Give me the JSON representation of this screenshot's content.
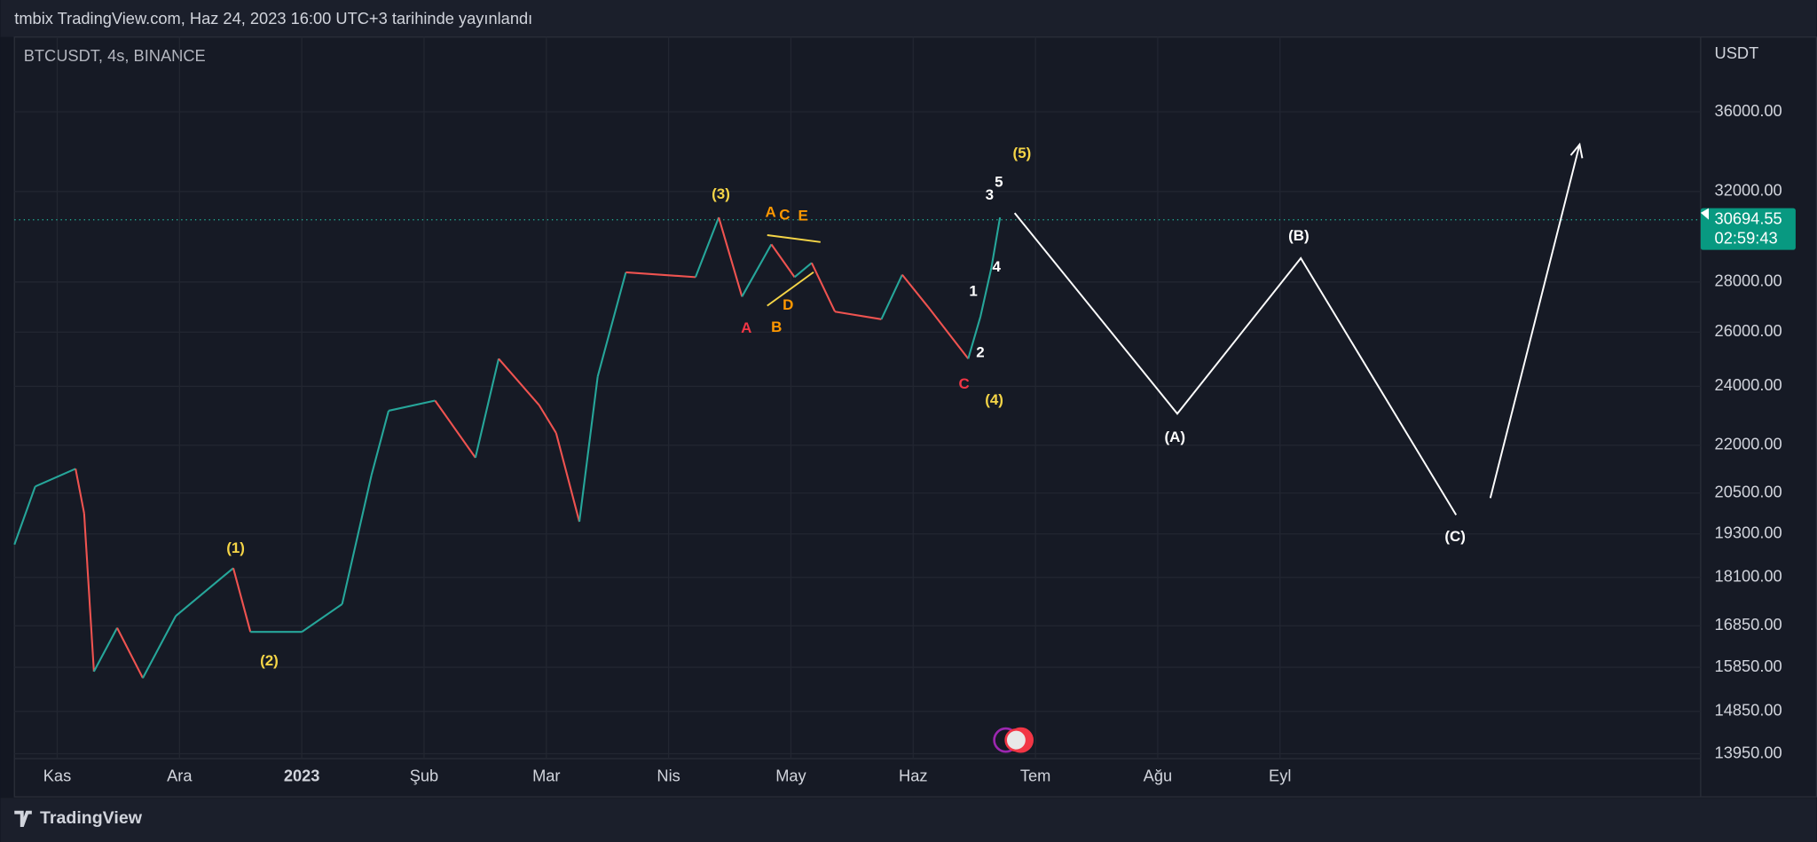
{
  "header": {
    "publisher": "tmbix TradingView.com, Haz 24, 2023 16:00 UTC+3 tarihinde yayınlandı"
  },
  "symbol": "BTCUSDT, 4s, BINANCE",
  "footer": {
    "brand": "TradingView"
  },
  "chart_data": {
    "type": "line",
    "y_axis_label": "USDT",
    "log_scale": true,
    "grid": true,
    "xlim": [
      -0.35,
      13.44
    ],
    "xticks": [
      {
        "value": 0,
        "label": "Kas"
      },
      {
        "value": 1,
        "label": "Ara"
      },
      {
        "value": 2,
        "label": "2023"
      },
      {
        "value": 3,
        "label": "Şub"
      },
      {
        "value": 4,
        "label": "Mar"
      },
      {
        "value": 5,
        "label": "Nis"
      },
      {
        "value": 6,
        "label": "May"
      },
      {
        "value": 7,
        "label": "Haz"
      },
      {
        "value": 8,
        "label": "Tem"
      },
      {
        "value": 9,
        "label": "Ağu"
      },
      {
        "value": 10,
        "label": "Eyl"
      }
    ],
    "ylim": [
      13850,
      40200
    ],
    "yticks": [
      {
        "value": 36000,
        "label": "36000.00"
      },
      {
        "value": 32000,
        "label": "32000.00"
      },
      {
        "value": 28000,
        "label": "28000.00"
      },
      {
        "value": 26000,
        "label": "26000.00"
      },
      {
        "value": 24000,
        "label": "24000.00"
      },
      {
        "value": 22000,
        "label": "22000.00"
      },
      {
        "value": 20500,
        "label": "20500.00"
      },
      {
        "value": 19300,
        "label": "19300.00"
      },
      {
        "value": 18100,
        "label": "18100.00"
      },
      {
        "value": 16850,
        "label": "16850.00"
      },
      {
        "value": 15850,
        "label": "15850.00"
      },
      {
        "value": 14850,
        "label": "14850.00"
      },
      {
        "value": 13950,
        "label": "13950.00"
      }
    ],
    "last_price": 30694.55,
    "countdown": "02:59:43",
    "series": [
      {
        "color": "#26a69a",
        "down_color": "#ef5350",
        "x": [
          -0.35,
          -0.18,
          0.15,
          0.22,
          0.3,
          0.49,
          0.7,
          0.97,
          1.44,
          1.58,
          2.0,
          2.33,
          2.57,
          2.71,
          3.09,
          3.42,
          3.61,
          3.94,
          4.08,
          4.27,
          4.42,
          4.65,
          5.22,
          5.41,
          5.6,
          5.84,
          6.03,
          6.17,
          6.36,
          6.74,
          6.91,
          7.12,
          7.45,
          7.55,
          7.64,
          7.71
        ],
        "values": [
          19000,
          20700,
          21250,
          19900,
          15750,
          16800,
          15600,
          17100,
          18350,
          16700,
          16700,
          17400,
          21050,
          23150,
          23500,
          21600,
          25000,
          23350,
          22400,
          19650,
          24350,
          28400,
          28200,
          30800,
          27400,
          29600,
          28200,
          28800,
          26800,
          26500,
          28300,
          27000,
          25000,
          26600,
          28600,
          30800
        ]
      },
      {
        "color": "#ffffff",
        "arrow": true,
        "x": [
          7.83,
          9.16,
          10.17,
          11.44,
          null,
          11.72,
          12.45
        ],
        "values": [
          31000,
          23050,
          29000,
          19850,
          null,
          20350,
          34300
        ]
      }
    ],
    "annotations": [
      {
        "text": "(1)",
        "color": "#f5d547"
      },
      {
        "text": "(2)",
        "color": "#f5d547"
      },
      {
        "text": "(3)",
        "color": "#f5d547"
      },
      {
        "text": "(4)",
        "color": "#f5d547"
      },
      {
        "text": "(5)",
        "color": "#f5d547"
      },
      {
        "text": "A",
        "color": "#ff9800"
      },
      {
        "text": "C",
        "color": "#ff9800"
      },
      {
        "text": "E",
        "color": "#ff9800"
      },
      {
        "text": "B",
        "color": "#ff9800"
      },
      {
        "text": "D",
        "color": "#ff9800"
      },
      {
        "text": "A",
        "color": "#f23645"
      },
      {
        "text": "C",
        "color": "#f23645"
      },
      {
        "text": "1",
        "color": "#ffffff"
      },
      {
        "text": "2",
        "color": "#ffffff"
      },
      {
        "text": "3",
        "color": "#ffffff"
      },
      {
        "text": "4",
        "color": "#ffffff"
      },
      {
        "text": "5",
        "color": "#ffffff"
      },
      {
        "text": "(A)",
        "color": "#ffffff"
      },
      {
        "text": "(B)",
        "color": "#ffffff"
      },
      {
        "text": "(C)",
        "color": "#ffffff"
      }
    ]
  }
}
